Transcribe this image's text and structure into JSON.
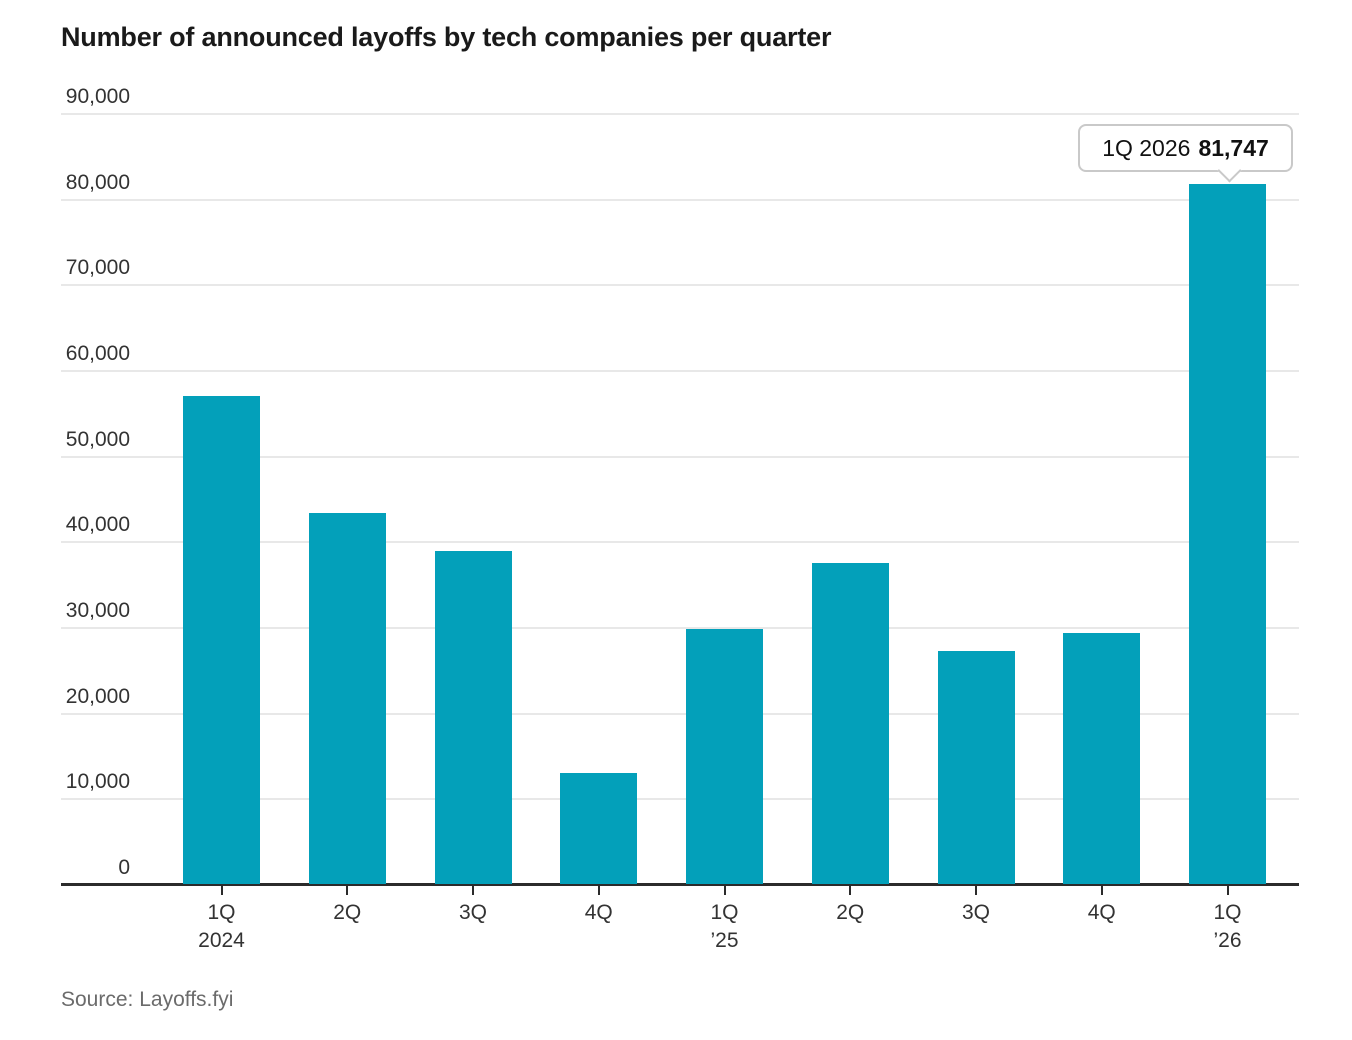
{
  "title": "Number of announced layoffs by tech companies per quarter",
  "source": "Source: Layoffs.fyi",
  "tooltip": {
    "label": "1Q 2026",
    "value": "81,747"
  },
  "colors": {
    "bar": "#03a0ba",
    "grid": "#e8e8e8",
    "axis": "#2b2b2b",
    "tick_text": "#333333",
    "title_text": "#1a1a1a",
    "source_text": "#6b6b6b",
    "tooltip_text": "#111111",
    "tooltip_border": "#c9c9c9"
  },
  "chart_data": {
    "type": "bar",
    "title": "Number of announced layoffs by tech companies per quarter",
    "categories": [
      "1Q 2024",
      "2Q 2024",
      "3Q 2024",
      "4Q 2024",
      "1Q 2025",
      "2Q 2025",
      "3Q 2025",
      "4Q 2025",
      "1Q 2026"
    ],
    "values": [
      57000,
      43300,
      38900,
      13000,
      29800,
      37500,
      27200,
      29300,
      81747
    ],
    "x_tick_line1": [
      "1Q",
      "2Q",
      "3Q",
      "4Q",
      "1Q",
      "2Q",
      "3Q",
      "4Q",
      "1Q"
    ],
    "x_tick_line2": [
      "2024",
      "",
      "",
      "",
      "’25",
      "",
      "",
      "",
      "’26"
    ],
    "xlabel": "",
    "ylabel": "",
    "ylim": [
      0,
      90000
    ],
    "ytick_step": 10000,
    "ytick_labels": [
      "0",
      "10,000",
      "20,000",
      "30,000",
      "40,000",
      "50,000",
      "60,000",
      "70,000",
      "80,000",
      "90,000"
    ],
    "grid": true,
    "legend": false,
    "annotation": {
      "target": "1Q 2026",
      "label": "1Q 2026",
      "value": "81,747"
    }
  }
}
